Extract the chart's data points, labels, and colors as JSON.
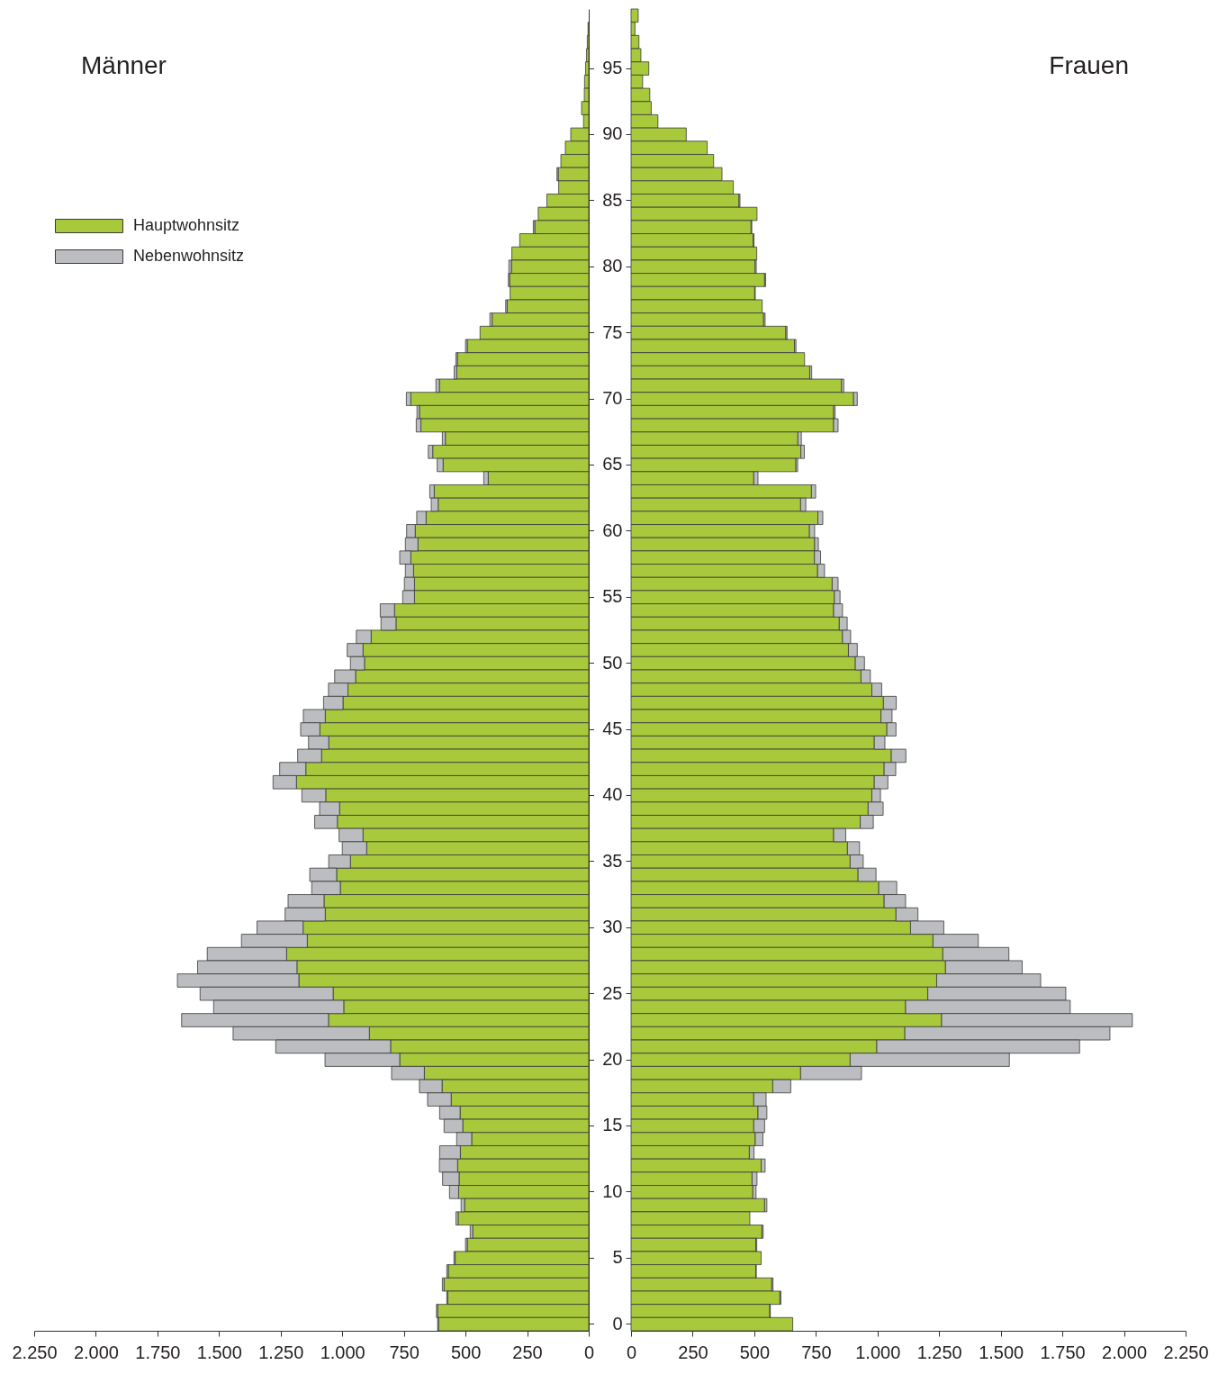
{
  "chart_data": [
    {
      "type": "bar",
      "title": "Männer",
      "orientation": "horizontal",
      "stacked": true,
      "legend": "top left",
      "tick_labels": "x",
      "categories": [
        null,
        null,
        null,
        null,
        "95",
        null,
        null,
        null,
        null,
        "90",
        null,
        null,
        null,
        null,
        "85",
        null,
        null,
        null,
        null,
        "80",
        null,
        null,
        null,
        null,
        "75",
        null,
        null,
        null,
        null,
        "70",
        null,
        null,
        null,
        null,
        "65",
        null,
        null,
        null,
        null,
        "60",
        null,
        null,
        null,
        null,
        "55",
        null,
        null,
        null,
        null,
        "50",
        null,
        null,
        null,
        null,
        "45",
        null,
        null,
        null,
        null,
        "40",
        null,
        null,
        null,
        null,
        "35",
        null,
        null,
        null,
        null,
        "30",
        null,
        null,
        null,
        null,
        "25",
        null,
        null,
        null,
        null,
        "20",
        null,
        null,
        null,
        null,
        "15",
        null,
        null,
        null,
        null,
        "10",
        null,
        null,
        null,
        null,
        "5",
        null,
        null,
        null,
        null,
        "0"
      ],
      "xlim": [
        2250,
        0
      ],
      "xticks": [
        {
          "value": 2250,
          "label": "2.250"
        },
        {
          "value": 2000,
          "label": "2.000"
        },
        {
          "value": 1750,
          "label": "1.750"
        },
        {
          "value": 1500,
          "label": "1.500"
        },
        {
          "value": 1250,
          "label": "1.250"
        },
        {
          "value": 1000,
          "label": "1.000"
        },
        750,
        500,
        250,
        0
      ],
      "series": [
        {
          "name": "Hauptwohnsitz",
          "color": "#a8c93b",
          "values": [
            null,
            3,
            6,
            9,
            13,
            17,
            18,
            29,
            21,
            73,
            95,
            113,
            124,
            122,
            170,
            205,
            219,
            280,
            312,
            314,
            321,
            319,
            331,
            392,
            441,
            493,
            533,
            536,
            606,
            722,
            687,
            681,
            582,
            633,
            591,
            408,
            627,
            611,
            660,
            704,
            693,
            722,
            711,
            707,
            707,
            788,
            782,
            883,
            916,
            910,
            946,
            977,
            997,
            1069,
            1091,
            1055,
            1084,
            1148,
            1186,
            1067,
            1011,
            1020,
            916,
            901,
            967,
            1023,
            1008,
            1074,
            1069,
            1159,
            1142,
            1226,
            1184,
            1176,
            1037,
            994,
            1056,
            890,
            804,
            767,
            667,
            595,
            558,
            522,
            511,
            475,
            521,
            532,
            526,
            528,
            504,
            530,
            471,
            493,
            542,
            570,
            587,
            572,
            613,
            610
          ]
        },
        {
          "name": "Nebenwohnsitz",
          "color": "#bcbdc0",
          "values": [
            0,
            0,
            0,
            0,
            0,
            0,
            0,
            0,
            0,
            0,
            0,
            0,
            5,
            0,
            0,
            0,
            6,
            0,
            0,
            10,
            5,
            0,
            6,
            9,
            0,
            7,
            6,
            10,
            14,
            18,
            10,
            19,
            12,
            18,
            24,
            18,
            18,
            28,
            38,
            35,
            51,
            45,
            33,
            41,
            48,
            58,
            61,
            60,
            64,
            57,
            85,
            79,
            79,
            89,
            78,
            82,
            97,
            106,
            95,
            97,
            81,
            92,
            97,
            99,
            88,
            109,
            116,
            146,
            163,
            187,
            267,
            322,
            403,
            493,
            540,
            528,
            596,
            553,
            466,
            303,
            133,
            92,
            96,
            83,
            76,
            61,
            84,
            74,
            67,
            37,
            14,
            9,
            10,
            7,
            5,
            6,
            7,
            4,
            5,
            3
          ]
        }
      ]
    },
    {
      "type": "bar",
      "title": "Frauen",
      "orientation": "horizontal",
      "stacked": true,
      "categories": [
        null,
        null,
        null,
        null,
        "95",
        null,
        null,
        null,
        null,
        "90",
        null,
        null,
        null,
        null,
        "85",
        null,
        null,
        null,
        null,
        "80",
        null,
        null,
        null,
        null,
        "75",
        null,
        null,
        null,
        null,
        "70",
        null,
        null,
        null,
        null,
        "65",
        null,
        null,
        null,
        null,
        "60",
        null,
        null,
        null,
        null,
        "55",
        null,
        null,
        null,
        null,
        "50",
        null,
        null,
        null,
        null,
        "45",
        null,
        null,
        null,
        null,
        "40",
        null,
        null,
        null,
        null,
        "35",
        null,
        null,
        null,
        null,
        "30",
        null,
        null,
        null,
        null,
        "25",
        null,
        null,
        null,
        null,
        "20",
        null,
        null,
        null,
        null,
        "15",
        null,
        null,
        null,
        null,
        "10",
        null,
        null,
        null,
        null,
        "5",
        null,
        null,
        null,
        null,
        "0"
      ],
      "xlim": [
        0,
        2250
      ],
      "xticks": [
        0,
        250,
        500,
        750,
        {
          "value": 1000,
          "label": "1.000"
        },
        {
          "value": 1250,
          "label": "1.250"
        },
        {
          "value": 1500,
          "label": "1.500"
        },
        {
          "value": 1750,
          "label": "1.750"
        },
        {
          "value": 2000,
          "label": "2.000"
        },
        {
          "value": 2250,
          "label": "2.250"
        }
      ],
      "series": [
        {
          "color": "#a8c93b",
          "values": [
            29,
            16,
            32,
            40,
            72,
            47,
            76,
            82,
            109,
            224,
            309,
            335,
            369,
            415,
            438,
            511,
            487,
            495,
            510,
            503,
            542,
            502,
            532,
            538,
            628,
            663,
            704,
            725,
            854,
            903,
            822,
            822,
            677,
            689,
            669,
            498,
            732,
            688,
            758,
            724,
            745,
            744,
            757,
            816,
            825,
            822,
            845,
            858,
            882,
            910,
            933,
            977,
            1024,
            1014,
            1038,
            987,
            1056,
            1027,
            987,
            977,
            962,
            930,
            822,
            878,
            889,
            921,
            1005,
            1027,
            1075,
            1134,
            1225,
            1265,
            1276,
            1240,
            1204,
            1114,
            1260,
            1111,
            997,
            889,
            688,
            575,
            498,
            515,
            498,
            504,
            480,
            528,
            491,
            494,
            542,
            482,
            531,
            506,
            528,
            506,
            571,
            604,
            563,
            656
          ]
        },
        {
          "color": "#bcbdc0",
          "values": [
            0,
            0,
            0,
            0,
            0,
            0,
            0,
            0,
            0,
            0,
            0,
            null,
            0,
            0,
            4,
            0,
            3,
            4,
            0,
            5,
            4,
            2,
            0,
            6,
            5,
            6,
            0,
            8,
            9,
            15,
            6,
            18,
            14,
            14,
            7,
            17,
            17,
            21,
            20,
            21,
            15,
            25,
            28,
            24,
            23,
            36,
            32,
            33,
            36,
            37,
            38,
            40,
            52,
            45,
            37,
            43,
            59,
            47,
            55,
            35,
            61,
            53,
            49,
            49,
            53,
            73,
            73,
            87,
            89,
            135,
            184,
            268,
            311,
            422,
            560,
            668,
            774,
            832,
            823,
            646,
            247,
            73,
            50,
            36,
            44,
            31,
            19,
            16,
            20,
            13,
            9,
            0,
            5,
            4,
            0,
            2,
            5,
            4,
            2,
            0
          ]
        }
      ]
    }
  ]
}
